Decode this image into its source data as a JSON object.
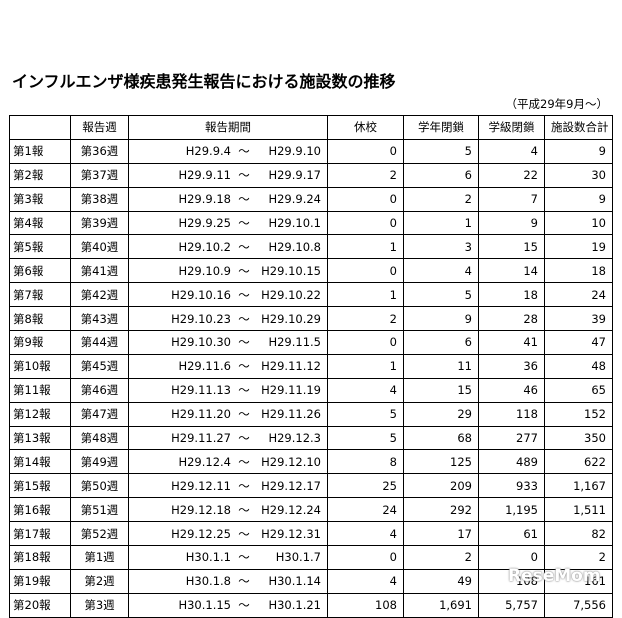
{
  "document": {
    "title": "インフルエンザ様疾患発生報告における施設数の推移",
    "period_note": "（平成29年9月～）",
    "watermark": "ReseMom"
  },
  "table": {
    "headers": [
      "",
      "報告週",
      "報告期間",
      "休校",
      "学年閉鎖",
      "学級閉鎖",
      "施設数合計"
    ],
    "rows": [
      {
        "report": "第1報",
        "week": "第36週",
        "start": "H29.9.4",
        "sep": "～",
        "end": "H29.9.10",
        "closure": "0",
        "grade": "5",
        "class": "4",
        "total": "9"
      },
      {
        "report": "第2報",
        "week": "第37週",
        "start": "H29.9.11",
        "sep": "～",
        "end": "H29.9.17",
        "closure": "2",
        "grade": "6",
        "class": "22",
        "total": "30"
      },
      {
        "report": "第3報",
        "week": "第38週",
        "start": "H29.9.18",
        "sep": "～",
        "end": "H29.9.24",
        "closure": "0",
        "grade": "2",
        "class": "7",
        "total": "9"
      },
      {
        "report": "第4報",
        "week": "第39週",
        "start": "H29.9.25",
        "sep": "～",
        "end": "H29.10.1",
        "closure": "0",
        "grade": "1",
        "class": "9",
        "total": "10"
      },
      {
        "report": "第5報",
        "week": "第40週",
        "start": "H29.10.2",
        "sep": "～",
        "end": "H29.10.8",
        "closure": "1",
        "grade": "3",
        "class": "15",
        "total": "19"
      },
      {
        "report": "第6報",
        "week": "第41週",
        "start": "H29.10.9",
        "sep": "～",
        "end": "H29.10.15",
        "closure": "0",
        "grade": "4",
        "class": "14",
        "total": "18"
      },
      {
        "report": "第7報",
        "week": "第42週",
        "start": "H29.10.16",
        "sep": "～",
        "end": "H29.10.22",
        "closure": "1",
        "grade": "5",
        "class": "18",
        "total": "24"
      },
      {
        "report": "第8報",
        "week": "第43週",
        "start": "H29.10.23",
        "sep": "～",
        "end": "H29.10.29",
        "closure": "2",
        "grade": "9",
        "class": "28",
        "total": "39"
      },
      {
        "report": "第9報",
        "week": "第44週",
        "start": "H29.10.30",
        "sep": "～",
        "end": "H29.11.5",
        "closure": "0",
        "grade": "6",
        "class": "41",
        "total": "47"
      },
      {
        "report": "第10報",
        "week": "第45週",
        "start": "H29.11.6",
        "sep": "～",
        "end": "H29.11.12",
        "closure": "1",
        "grade": "11",
        "class": "36",
        "total": "48"
      },
      {
        "report": "第11報",
        "week": "第46週",
        "start": "H29.11.13",
        "sep": "～",
        "end": "H29.11.19",
        "closure": "4",
        "grade": "15",
        "class": "46",
        "total": "65"
      },
      {
        "report": "第12報",
        "week": "第47週",
        "start": "H29.11.20",
        "sep": "～",
        "end": "H29.11.26",
        "closure": "5",
        "grade": "29",
        "class": "118",
        "total": "152"
      },
      {
        "report": "第13報",
        "week": "第48週",
        "start": "H29.11.27",
        "sep": "～",
        "end": "H29.12.3",
        "closure": "5",
        "grade": "68",
        "class": "277",
        "total": "350"
      },
      {
        "report": "第14報",
        "week": "第49週",
        "start": "H29.12.4",
        "sep": "～",
        "end": "H29.12.10",
        "closure": "8",
        "grade": "125",
        "class": "489",
        "total": "622"
      },
      {
        "report": "第15報",
        "week": "第50週",
        "start": "H29.12.11",
        "sep": "～",
        "end": "H29.12.17",
        "closure": "25",
        "grade": "209",
        "class": "933",
        "total": "1,167"
      },
      {
        "report": "第16報",
        "week": "第51週",
        "start": "H29.12.18",
        "sep": "～",
        "end": "H29.12.24",
        "closure": "24",
        "grade": "292",
        "class": "1,195",
        "total": "1,511"
      },
      {
        "report": "第17報",
        "week": "第52週",
        "start": "H29.12.25",
        "sep": "～",
        "end": "H29.12.31",
        "closure": "4",
        "grade": "17",
        "class": "61",
        "total": "82"
      },
      {
        "report": "第18報",
        "week": "第1週",
        "start": "H30.1.1",
        "sep": "～",
        "end": "H30.1.7",
        "closure": "0",
        "grade": "2",
        "class": "0",
        "total": "2"
      },
      {
        "report": "第19報",
        "week": "第2週",
        "start": "H30.1.8",
        "sep": "～",
        "end": "H30.1.14",
        "closure": "4",
        "grade": "49",
        "class": "108",
        "total": "161"
      },
      {
        "report": "第20報",
        "week": "第3週",
        "start": "H30.1.15",
        "sep": "～",
        "end": "H30.1.21",
        "closure": "108",
        "grade": "1,691",
        "class": "5,757",
        "total": "7,556"
      }
    ]
  }
}
